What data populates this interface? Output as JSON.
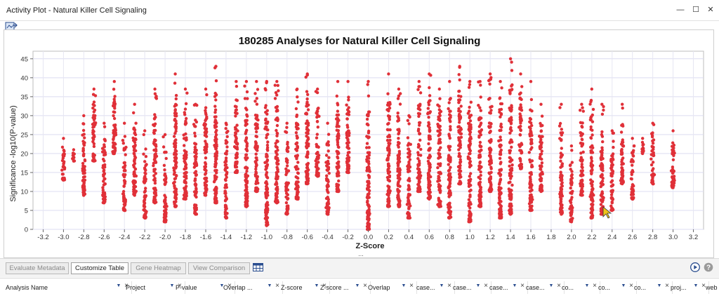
{
  "window": {
    "title": "Activity Plot - Natural Killer Cell Signaling",
    "buttons": {
      "minimize": "—",
      "maximize": "☐",
      "close": "✕"
    }
  },
  "toolbar": {
    "export_icon": "export-image-icon"
  },
  "chart_data": {
    "type": "scatter",
    "title": "180285 Analyses for Natural Killer Cell Signaling",
    "xlabel": "Z-Score",
    "ylabel": "Significance -log10(P-value)",
    "xlim": [
      -3.3,
      3.3
    ],
    "ylim": [
      0,
      47
    ],
    "x_ticks": [
      "-3.2",
      "-3.0",
      "-2.8",
      "-2.6",
      "-2.4",
      "-2.2",
      "-2.0",
      "-1.8",
      "-1.6",
      "-1.4",
      "-1.2",
      "-1.0",
      "-0.8",
      "-0.6",
      "-0.4",
      "-0.2",
      "0.0",
      "0.2",
      "0.4",
      "0.6",
      "0.8",
      "1.0",
      "1.2",
      "1.4",
      "1.6",
      "1.8",
      "2.0",
      "2.2",
      "2.4",
      "2.6",
      "2.8",
      "3.0",
      "3.2"
    ],
    "y_ticks": [
      "0",
      "5",
      "10",
      "15",
      "20",
      "25",
      "30",
      "35",
      "40",
      "45"
    ],
    "grid": true,
    "marker_color": "#e03038",
    "x_minor_label": "...",
    "columns": [
      {
        "x": -3.0,
        "ymin": 13,
        "ymax": 24
      },
      {
        "x": -2.9,
        "ymin": 18,
        "ymax": 21
      },
      {
        "x": -2.8,
        "ymin": 9,
        "ymax": 30
      },
      {
        "x": -2.7,
        "ymin": 18,
        "ymax": 37
      },
      {
        "x": -2.6,
        "ymin": 7,
        "ymax": 28
      },
      {
        "x": -2.5,
        "ymin": 20,
        "ymax": 39
      },
      {
        "x": -2.4,
        "ymin": 5,
        "ymax": 28
      },
      {
        "x": -2.3,
        "ymin": 9,
        "ymax": 33
      },
      {
        "x": -2.2,
        "ymin": 3,
        "ymax": 26
      },
      {
        "x": -2.1,
        "ymin": 7,
        "ymax": 37
      },
      {
        "x": -2.0,
        "ymin": 2,
        "ymax": 25
      },
      {
        "x": -1.9,
        "ymin": 6,
        "ymax": 41
      },
      {
        "x": -1.8,
        "ymin": 8,
        "ymax": 37
      },
      {
        "x": -1.7,
        "ymin": 4,
        "ymax": 33
      },
      {
        "x": -1.6,
        "ymin": 9,
        "ymax": 37
      },
      {
        "x": -1.5,
        "ymin": 7,
        "ymax": 43
      },
      {
        "x": -1.4,
        "ymin": 3,
        "ymax": 28
      },
      {
        "x": -1.3,
        "ymin": 15,
        "ymax": 39
      },
      {
        "x": -1.2,
        "ymin": 6,
        "ymax": 39
      },
      {
        "x": -1.1,
        "ymin": 10,
        "ymax": 39
      },
      {
        "x": -1.0,
        "ymin": 1,
        "ymax": 39
      },
      {
        "x": -0.9,
        "ymin": 7,
        "ymax": 39
      },
      {
        "x": -0.8,
        "ymin": 4,
        "ymax": 28
      },
      {
        "x": -0.7,
        "ymin": 8,
        "ymax": 37
      },
      {
        "x": -0.6,
        "ymin": 12,
        "ymax": 41
      },
      {
        "x": -0.5,
        "ymin": 14,
        "ymax": 37
      },
      {
        "x": -0.4,
        "ymin": 4,
        "ymax": 28
      },
      {
        "x": -0.3,
        "ymin": 10,
        "ymax": 39
      },
      {
        "x": -0.2,
        "ymin": 15,
        "ymax": 39
      },
      {
        "x": 0.0,
        "ymin": 0,
        "ymax": 39
      },
      {
        "x": 0.2,
        "ymin": 6,
        "ymax": 41
      },
      {
        "x": 0.3,
        "ymin": 6,
        "ymax": 37
      },
      {
        "x": 0.4,
        "ymin": 3,
        "ymax": 30
      },
      {
        "x": 0.5,
        "ymin": 10,
        "ymax": 39
      },
      {
        "x": 0.6,
        "ymin": 8,
        "ymax": 41
      },
      {
        "x": 0.7,
        "ymin": 6,
        "ymax": 37
      },
      {
        "x": 0.8,
        "ymin": 3,
        "ymax": 39
      },
      {
        "x": 0.9,
        "ymin": 12,
        "ymax": 43
      },
      {
        "x": 1.0,
        "ymin": 2,
        "ymax": 39
      },
      {
        "x": 1.1,
        "ymin": 6,
        "ymax": 39
      },
      {
        "x": 1.2,
        "ymin": 10,
        "ymax": 41
      },
      {
        "x": 1.3,
        "ymin": 3,
        "ymax": 39
      },
      {
        "x": 1.4,
        "ymin": 4,
        "ymax": 45
      },
      {
        "x": 1.5,
        "ymin": 16,
        "ymax": 41
      },
      {
        "x": 1.6,
        "ymin": 5,
        "ymax": 39
      },
      {
        "x": 1.7,
        "ymin": 10,
        "ymax": 33
      },
      {
        "x": 1.9,
        "ymin": 4,
        "ymax": 33
      },
      {
        "x": 2.0,
        "ymin": 2,
        "ymax": 22
      },
      {
        "x": 2.1,
        "ymin": 9,
        "ymax": 33
      },
      {
        "x": 2.2,
        "ymin": 3,
        "ymax": 37
      },
      {
        "x": 2.3,
        "ymin": 4,
        "ymax": 33
      },
      {
        "x": 2.4,
        "ymin": 5,
        "ymax": 26
      },
      {
        "x": 2.5,
        "ymin": 12,
        "ymax": 33
      },
      {
        "x": 2.6,
        "ymin": 8,
        "ymax": 24
      },
      {
        "x": 2.7,
        "ymin": 20,
        "ymax": 24
      },
      {
        "x": 2.8,
        "ymin": 12,
        "ymax": 28
      },
      {
        "x": 3.0,
        "ymin": 11,
        "ymax": 26
      }
    ]
  },
  "buttons": {
    "evaluate": "Evaluate Metadata",
    "customize": "Customize Table",
    "heatmap": "Gene Heatmap",
    "comparison": "View Comparison"
  },
  "icons": {
    "grid_icon": "table-settings-icon",
    "play_icon": "play-icon",
    "help_icon": "help-icon"
  },
  "table": {
    "columns": [
      "Analysis Name",
      "Project",
      "P-value",
      "Overlap ...",
      "Z-score",
      "Z-score ...",
      "Overlap",
      "case...",
      "case...",
      "case...",
      "case...",
      "co...",
      "co...",
      "co...",
      "proj...",
      "web"
    ]
  }
}
